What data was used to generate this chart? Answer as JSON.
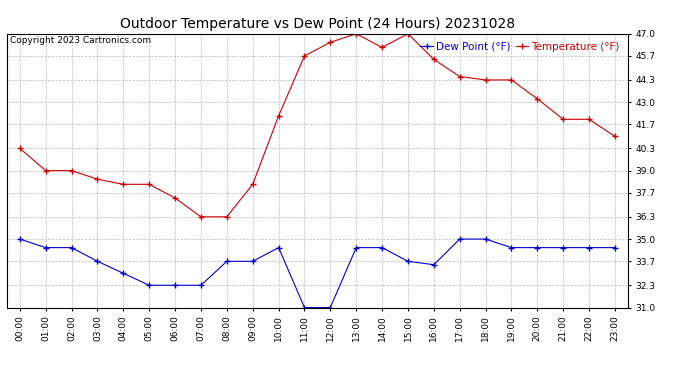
{
  "title": "Outdoor Temperature vs Dew Point (24 Hours) 20231028",
  "copyright": "Copyright 2023 Cartronics.com",
  "legend_dew": "Dew Point (°F)",
  "legend_temp": "Temperature (°F)",
  "hours": [
    "00:00",
    "01:00",
    "02:00",
    "03:00",
    "04:00",
    "05:00",
    "06:00",
    "07:00",
    "08:00",
    "09:00",
    "10:00",
    "11:00",
    "12:00",
    "13:00",
    "14:00",
    "15:00",
    "16:00",
    "17:00",
    "18:00",
    "19:00",
    "20:00",
    "21:00",
    "22:00",
    "23:00"
  ],
  "temperature": [
    40.3,
    39.0,
    39.0,
    38.5,
    38.2,
    38.2,
    37.4,
    36.3,
    36.3,
    38.2,
    42.2,
    45.7,
    46.5,
    47.0,
    46.2,
    47.0,
    45.5,
    44.5,
    44.3,
    44.3,
    43.2,
    42.0,
    42.0,
    41.0
  ],
  "dew_point": [
    35.0,
    34.5,
    34.5,
    33.7,
    33.0,
    32.3,
    32.3,
    32.3,
    33.7,
    33.7,
    34.5,
    31.0,
    31.0,
    34.5,
    34.5,
    33.7,
    33.5,
    35.0,
    35.0,
    34.5,
    34.5,
    34.5,
    34.5,
    34.5
  ],
  "temp_color": "#cc0000",
  "dew_color": "#0000cc",
  "ylim_min": 31.0,
  "ylim_max": 47.0,
  "yticks": [
    31.0,
    32.3,
    33.7,
    35.0,
    36.3,
    37.7,
    39.0,
    40.3,
    41.7,
    43.0,
    44.3,
    45.7,
    47.0
  ],
  "background_color": "#ffffff",
  "grid_color": "#aaaaaa",
  "title_fontsize": 10,
  "copyright_fontsize": 6.5,
  "legend_fontsize": 7.5,
  "tick_fontsize": 6.5
}
